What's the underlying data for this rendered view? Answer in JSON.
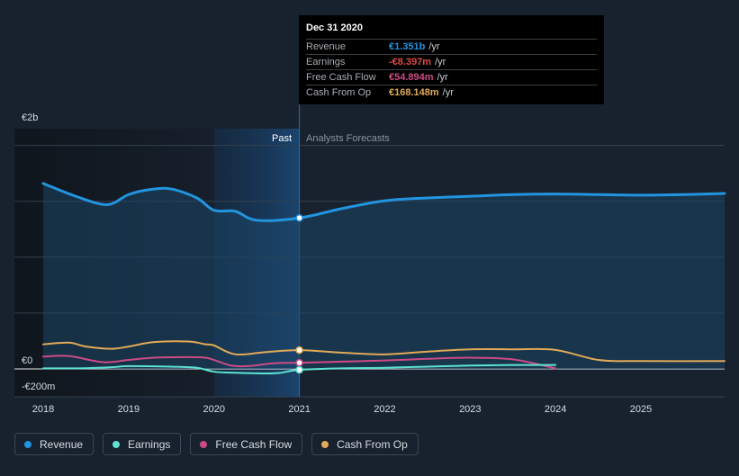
{
  "chart_data": {
    "type": "line",
    "currency_unit": "€",
    "y_tick_labels": [
      "€2b",
      "€0",
      "-€200m"
    ],
    "y_tick_values": [
      2000,
      0,
      -200
    ],
    "y_gridlines": [
      2000,
      1500,
      1000,
      500,
      0
    ],
    "ylim": [
      -250,
      2150
    ],
    "xlim": [
      2017.7,
      2025.98
    ],
    "x_tick_labels": [
      "2018",
      "2019",
      "2020",
      "2021",
      "2022",
      "2023",
      "2024",
      "2025"
    ],
    "x_tick_values": [
      2018,
      2019,
      2020,
      2021,
      2022,
      2023,
      2024,
      2025
    ],
    "past_label": "Past",
    "forecast_label": "Analysts Forecasts",
    "divider_x": 2021,
    "shaded_period_start": 2020,
    "series": [
      {
        "name": "Revenue",
        "color": "#2394df",
        "points": [
          [
            2018,
            1660
          ],
          [
            2018.4,
            1540
          ],
          [
            2018.75,
            1470
          ],
          [
            2019,
            1560
          ],
          [
            2019.25,
            1605
          ],
          [
            2019.5,
            1610
          ],
          [
            2019.8,
            1530
          ],
          [
            2020,
            1420
          ],
          [
            2020.25,
            1410
          ],
          [
            2020.5,
            1330
          ],
          [
            2021,
            1351
          ],
          [
            2021.5,
            1435
          ],
          [
            2022,
            1505
          ],
          [
            2022.5,
            1530
          ],
          [
            2023,
            1545
          ],
          [
            2023.5,
            1560
          ],
          [
            2024,
            1565
          ],
          [
            2024.5,
            1560
          ],
          [
            2025,
            1555
          ],
          [
            2025.5,
            1560
          ],
          [
            2025.98,
            1570
          ]
        ]
      },
      {
        "name": "Earnings",
        "color": "#5ee3d2",
        "points": [
          [
            2018,
            5
          ],
          [
            2018.4,
            5
          ],
          [
            2018.8,
            15
          ],
          [
            2019,
            25
          ],
          [
            2019.5,
            20
          ],
          [
            2019.8,
            10
          ],
          [
            2020,
            -25
          ],
          [
            2020.25,
            -35
          ],
          [
            2020.5,
            -40
          ],
          [
            2020.75,
            -38
          ],
          [
            2021,
            -8.397
          ],
          [
            2021.5,
            5
          ],
          [
            2022,
            10
          ],
          [
            2022.5,
            20
          ],
          [
            2023,
            30
          ],
          [
            2023.5,
            35
          ],
          [
            2024,
            35
          ]
        ]
      },
      {
        "name": "Free Cash Flow",
        "color": "#cc4b86",
        "points": [
          [
            2018,
            110
          ],
          [
            2018.3,
            115
          ],
          [
            2018.7,
            60
          ],
          [
            2019,
            80
          ],
          [
            2019.3,
            100
          ],
          [
            2019.7,
            105
          ],
          [
            2019.9,
            100
          ],
          [
            2020,
            80
          ],
          [
            2020.2,
            30
          ],
          [
            2020.4,
            25
          ],
          [
            2020.7,
            50
          ],
          [
            2021,
            54.894
          ],
          [
            2021.5,
            65
          ],
          [
            2022,
            75
          ],
          [
            2022.5,
            90
          ],
          [
            2023,
            100
          ],
          [
            2023.5,
            85
          ],
          [
            2024,
            5
          ]
        ]
      },
      {
        "name": "Cash From Op",
        "color": "#e2a958",
        "points": [
          [
            2018,
            220
          ],
          [
            2018.3,
            235
          ],
          [
            2018.5,
            200
          ],
          [
            2018.8,
            180
          ],
          [
            2019,
            200
          ],
          [
            2019.3,
            240
          ],
          [
            2019.7,
            245
          ],
          [
            2019.9,
            220
          ],
          [
            2020,
            210
          ],
          [
            2020.25,
            130
          ],
          [
            2020.6,
            150
          ],
          [
            2021,
            168.148
          ],
          [
            2021.5,
            145
          ],
          [
            2022,
            130
          ],
          [
            2022.5,
            155
          ],
          [
            2023,
            175
          ],
          [
            2023.5,
            175
          ],
          [
            2024,
            170
          ],
          [
            2024.5,
            80
          ],
          [
            2025,
            70
          ],
          [
            2025.98,
            70
          ]
        ]
      }
    ],
    "tooltip": {
      "date": "Dec 31 2020",
      "rows": [
        {
          "label": "Revenue",
          "value": "€1.351b",
          "unit": "/yr",
          "color": "#2394df"
        },
        {
          "label": "Earnings",
          "value": "-€8.397m",
          "unit": "/yr",
          "color": "#e04b45"
        },
        {
          "label": "Free Cash Flow",
          "value": "€54.894m",
          "unit": "/yr",
          "color": "#cc4b86"
        },
        {
          "label": "Cash From Op",
          "value": "€168.148m",
          "unit": "/yr",
          "color": "#e2a958"
        }
      ]
    },
    "legend": [
      {
        "label": "Revenue",
        "color": "#2394df"
      },
      {
        "label": "Earnings",
        "color": "#5ee3d2"
      },
      {
        "label": "Free Cash Flow",
        "color": "#cc4b86"
      },
      {
        "label": "Cash From Op",
        "color": "#e2a958"
      }
    ]
  }
}
